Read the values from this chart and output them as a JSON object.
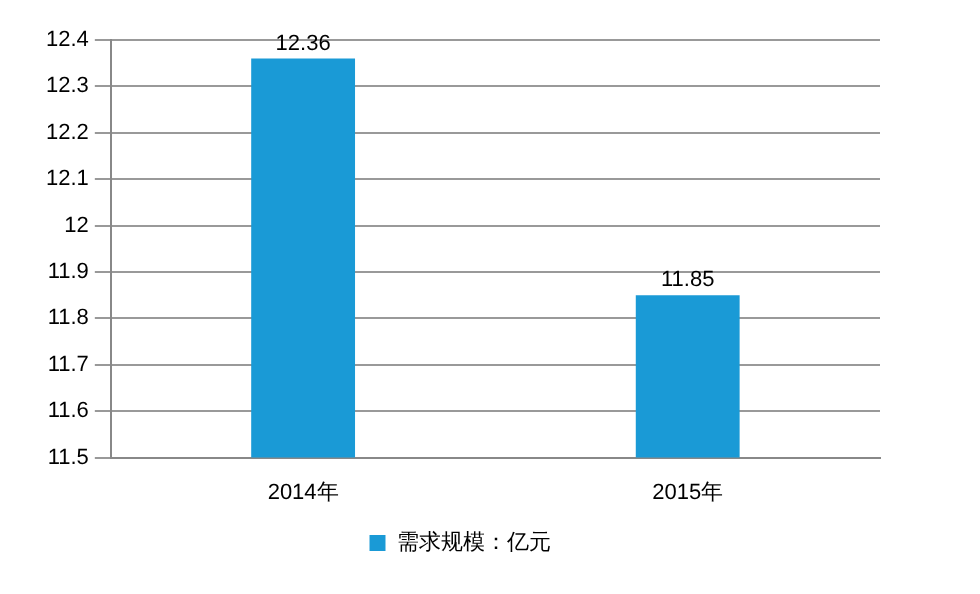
{
  "chart_data": {
    "type": "bar",
    "categories": [
      "2014年",
      "2015年"
    ],
    "series": [
      {
        "name": "需求规模：亿元",
        "color": "#1a9ad6",
        "values": [
          12.36,
          11.85
        ]
      }
    ],
    "ylim": [
      11.5,
      12.4
    ],
    "yticks": [
      11.5,
      11.6,
      11.7,
      11.8,
      11.9,
      12,
      12.1,
      12.2,
      12.3,
      12.4
    ],
    "grid": "y",
    "legend": "bottom",
    "data_labels": true
  }
}
